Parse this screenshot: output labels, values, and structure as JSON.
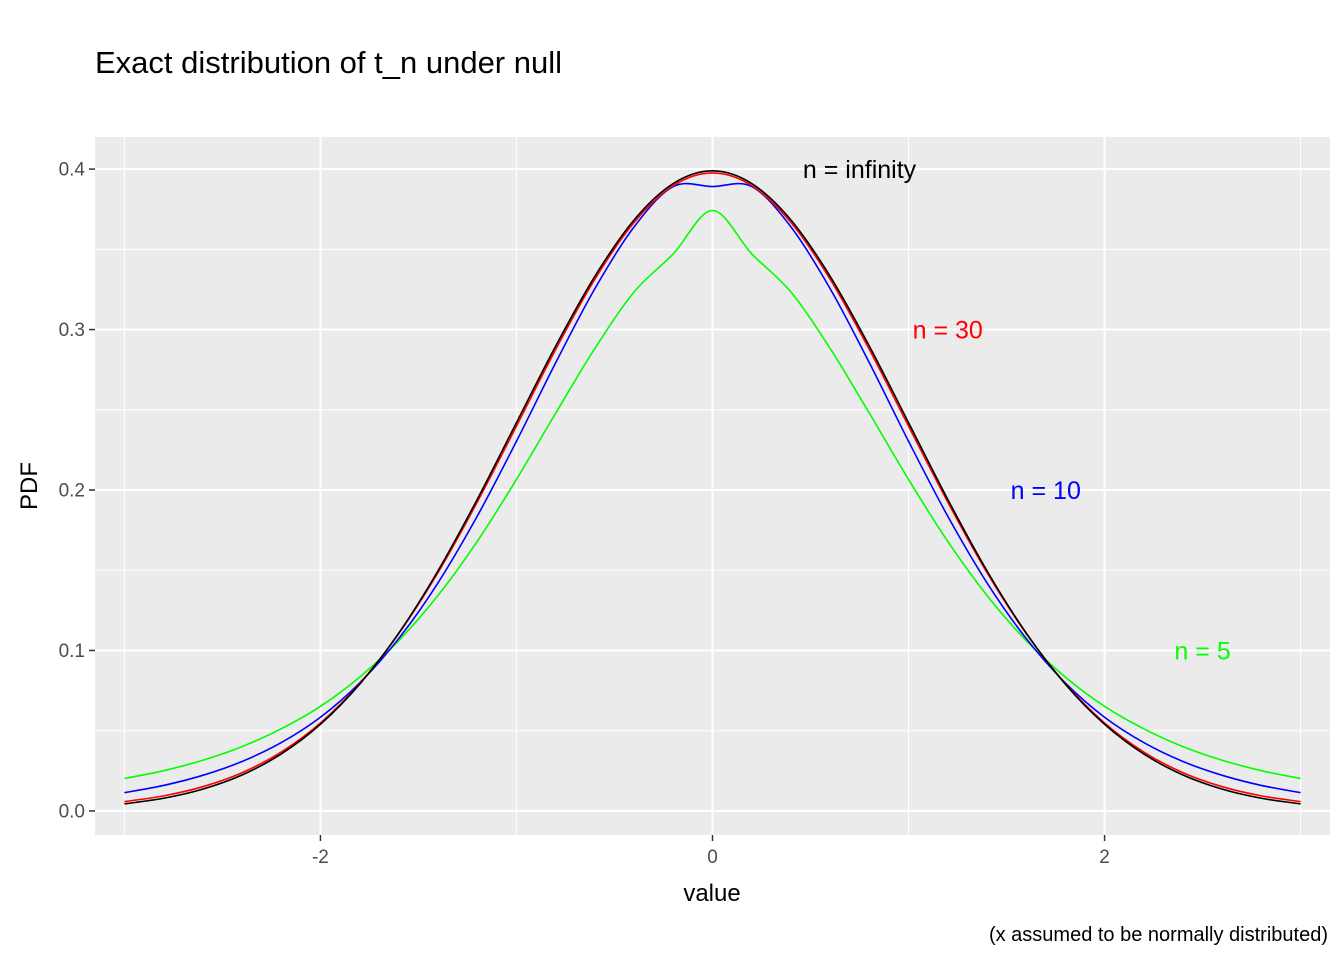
{
  "chart_data": {
    "type": "line",
    "title": "Exact distribution of t_n under null",
    "xlabel": "value",
    "ylabel": "PDF",
    "caption": "(x assumed to be normally distributed)",
    "xlim": [
      -3.15,
      3.15
    ],
    "ylim": [
      -0.015,
      0.42
    ],
    "x_ticks": [
      -2,
      0,
      2
    ],
    "x_tick_labels": [
      "-2",
      "0",
      "2"
    ],
    "y_ticks": [
      0.0,
      0.1,
      0.2,
      0.3,
      0.4
    ],
    "y_tick_labels": [
      "0.0",
      "0.1",
      "0.2",
      "0.3",
      "0.4"
    ],
    "grid": true,
    "panel_background": "#ebebeb",
    "grid_color": "#ffffff",
    "x": [
      -3.0,
      -2.8,
      -2.6,
      -2.4,
      -2.2,
      -2.0,
      -1.8,
      -1.6,
      -1.4,
      -1.2,
      -1.0,
      -0.8,
      -0.6,
      -0.4,
      -0.2,
      0.0,
      0.2,
      0.4,
      0.6,
      0.8,
      1.0,
      1.2,
      1.4,
      1.6,
      1.8,
      2.0,
      2.2,
      2.4,
      2.6,
      2.8,
      3.0
    ],
    "series": [
      {
        "name": "n = infinity",
        "color": "#000000",
        "values": [
          0.0044,
          0.0079,
          0.0136,
          0.0224,
          0.0355,
          0.054,
          0.079,
          0.1109,
          0.1497,
          0.1942,
          0.242,
          0.2897,
          0.3332,
          0.3683,
          0.391,
          0.3989,
          0.391,
          0.3683,
          0.3332,
          0.2897,
          0.242,
          0.1942,
          0.1497,
          0.1109,
          0.079,
          0.054,
          0.0355,
          0.0224,
          0.0136,
          0.0079,
          0.0044
        ]
      },
      {
        "name": "n = 30",
        "color": "#ff0000",
        "values": [
          0.0058,
          0.0094,
          0.0151,
          0.0238,
          0.0367,
          0.0548,
          0.0793,
          0.1106,
          0.1486,
          0.1925,
          0.2398,
          0.2876,
          0.3314,
          0.3667,
          0.3897,
          0.3976,
          0.3897,
          0.3667,
          0.3314,
          0.2876,
          0.2398,
          0.1925,
          0.1486,
          0.1106,
          0.0793,
          0.0548,
          0.0367,
          0.0238,
          0.0151,
          0.0094,
          0.0058
        ]
      },
      {
        "name": "n = 10",
        "color": "#0000ff",
        "values": [
          0.0114,
          0.0159,
          0.0222,
          0.0308,
          0.0426,
          0.0584,
          0.0798,
          0.1075,
          0.1422,
          0.1837,
          0.2304,
          0.2793,
          0.3255,
          0.364,
          0.3891,
          0.3891,
          0.3891,
          0.364,
          0.3255,
          0.2793,
          0.2304,
          0.1837,
          0.1422,
          0.1075,
          0.0798,
          0.0584,
          0.0426,
          0.0308,
          0.0222,
          0.0159,
          0.0114
        ]
      },
      {
        "name": "n = 5",
        "color": "#00ff00",
        "values": [
          0.0202,
          0.0251,
          0.0316,
          0.0401,
          0.0512,
          0.0652,
          0.0834,
          0.1062,
          0.1343,
          0.168,
          0.2066,
          0.2479,
          0.2882,
          0.3234,
          0.3472,
          0.3742,
          0.3472,
          0.3234,
          0.2882,
          0.2479,
          0.2066,
          0.168,
          0.1343,
          0.1062,
          0.0834,
          0.0652,
          0.0512,
          0.0401,
          0.0316,
          0.0251,
          0.0202
        ]
      }
    ],
    "annotations": [
      {
        "text": "n = infinity",
        "x": 0.75,
        "y": 0.4,
        "color": "#000000"
      },
      {
        "text": "n = 30",
        "x": 1.2,
        "y": 0.3,
        "color": "#ff0000"
      },
      {
        "text": "n = 10",
        "x": 1.7,
        "y": 0.2,
        "color": "#0000ff"
      },
      {
        "text": "n = 5",
        "x": 2.5,
        "y": 0.1,
        "color": "#00ff00"
      }
    ]
  }
}
